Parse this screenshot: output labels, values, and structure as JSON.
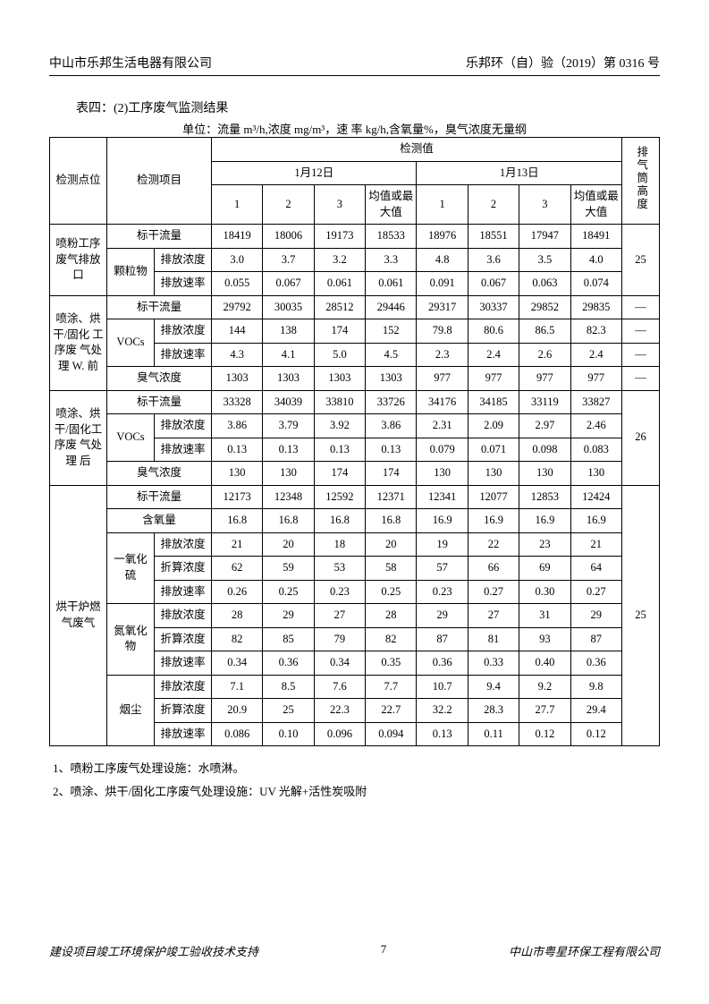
{
  "header": {
    "left": "中山市乐邦生活电器有限公司",
    "right": "乐邦环（自）验（2019）第 0316 号"
  },
  "caption": "表四：(2)工序废气监测结果",
  "unit_line": "单位：流量 m³/h,浓度 mg/m³，速 率  kg/h,含氧量%，臭气浓度无量纲",
  "thead": {
    "point": "检测点位",
    "item": "检测项目",
    "values": "检测值",
    "date1": "1月12日",
    "date2": "1月13日",
    "c1": "1",
    "c2": "2",
    "c3": "3",
    "avg": "均值或最大值",
    "height": "排气筒高度"
  },
  "sections": [
    {
      "point": "喷粉工序废气排放口",
      "height": "25",
      "groups": [
        {
          "param": "标干流量",
          "sub": null,
          "r": [
            "18419",
            "18006",
            "19173",
            "18533",
            "18976",
            "18551",
            "17947",
            "18491"
          ],
          "param_rowspan": 3,
          "param_label": "颗粒物"
        },
        {
          "param": null,
          "sub": "排放浓度",
          "r": [
            "3.0",
            "3.7",
            "3.2",
            "3.3",
            "4.8",
            "3.6",
            "3.5",
            "4.0"
          ]
        },
        {
          "param": null,
          "sub": "排放速率",
          "r": [
            "0.055",
            "0.067",
            "0.061",
            "0.061",
            "0.091",
            "0.067",
            "0.063",
            "0.074"
          ]
        }
      ]
    },
    {
      "point": "喷涂、烘干/固化 工序废 气处理 W. 前",
      "height": "—",
      "height_rows": [
        "—",
        "—",
        "—",
        "—"
      ],
      "groups": [
        {
          "param": "标干流量",
          "sub": null,
          "r": [
            "29792",
            "30035",
            "28512",
            "29446",
            "29317",
            "30337",
            "29852",
            "29835"
          ]
        },
        {
          "param": "VOCs",
          "sub": "排放浓度",
          "r": [
            "144",
            "138",
            "174",
            "152",
            "79.8",
            "80.6",
            "86.5",
            "82.3"
          ],
          "param_rowspan": 2
        },
        {
          "param": null,
          "sub": "排放速率",
          "r": [
            "4.3",
            "4.1",
            "5.0",
            "4.5",
            "2.3",
            "2.4",
            "2.6",
            "2.4"
          ]
        },
        {
          "param": "臭气浓度",
          "sub": null,
          "r": [
            "1303",
            "1303",
            "1303",
            "1303",
            "977",
            "977",
            "977",
            "977"
          ]
        }
      ]
    },
    {
      "point": "喷涂、烘干/固化工序废 气处理 后",
      "height": "26",
      "groups": [
        {
          "param": "标干流量",
          "sub": null,
          "r": [
            "33328",
            "34039",
            "33810",
            "33726",
            "34176",
            "34185",
            "33119",
            "33827"
          ]
        },
        {
          "param": "VOCs",
          "sub": "排放浓度",
          "r": [
            "3.86",
            "3.79",
            "3.92",
            "3.86",
            "2.31",
            "2.09",
            "2.97",
            "2.46"
          ],
          "param_rowspan": 2
        },
        {
          "param": null,
          "sub": "排放速率",
          "r": [
            "0.13",
            "0.13",
            "0.13",
            "0.13",
            "0.079",
            "0.071",
            "0.098",
            "0.083"
          ]
        },
        {
          "param": "臭气浓度",
          "sub": null,
          "r": [
            "130",
            "130",
            "174",
            "174",
            "130",
            "130",
            "130",
            "130"
          ]
        }
      ]
    },
    {
      "point": "烘干炉燃气废气",
      "height": "25",
      "groups": [
        {
          "param": "标干流量",
          "sub": null,
          "r": [
            "12173",
            "12348",
            "12592",
            "12371",
            "12341",
            "12077",
            "12853",
            "12424"
          ]
        },
        {
          "param": "含氧量",
          "sub": null,
          "r": [
            "16.8",
            "16.8",
            "16.8",
            "16.8",
            "16.9",
            "16.9",
            "16.9",
            "16.9"
          ]
        },
        {
          "param": "一氧化硫",
          "sub": "排放浓度",
          "r": [
            "21",
            "20",
            "18",
            "20",
            "19",
            "22",
            "23",
            "21"
          ],
          "param_rowspan": 3
        },
        {
          "param": null,
          "sub": "折算浓度",
          "r": [
            "62",
            "59",
            "53",
            "58",
            "57",
            "66",
            "69",
            "64"
          ]
        },
        {
          "param": null,
          "sub": "排放速率",
          "r": [
            "0.26",
            "0.25",
            "0.23",
            "0.25",
            "0.23",
            "0.27",
            "0.30",
            "0.27"
          ]
        },
        {
          "param": "氮氧化物",
          "sub": "排放浓度",
          "r": [
            "28",
            "29",
            "27",
            "28",
            "29",
            "27",
            "31",
            "29"
          ],
          "param_rowspan": 3
        },
        {
          "param": null,
          "sub": "折算浓度",
          "r": [
            "82",
            "85",
            "79",
            "82",
            "87",
            "81",
            "93",
            "87"
          ]
        },
        {
          "param": null,
          "sub": "排放速率",
          "r": [
            "0.34",
            "0.36",
            "0.34",
            "0.35",
            "0.36",
            "0.33",
            "0.40",
            "0.36"
          ]
        },
        {
          "param": "烟尘",
          "sub": "排放浓度",
          "r": [
            "7.1",
            "8.5",
            "7.6",
            "7.7",
            "10.7",
            "9.4",
            "9.2",
            "9.8"
          ],
          "param_rowspan": 3
        },
        {
          "param": null,
          "sub": "折算浓度",
          "r": [
            "20.9",
            "25",
            "22.3",
            "22.7",
            "32.2",
            "28.3",
            "27.7",
            "29.4"
          ]
        },
        {
          "param": null,
          "sub": "排放速率",
          "r": [
            "0.086",
            "0.10",
            "0.096",
            "0.094",
            "0.13",
            "0.11",
            "0.12",
            "0.12"
          ]
        }
      ]
    }
  ],
  "notes": [
    "1、喷粉工序废气处理设施：水喷淋。",
    "2、喷涂、烘干/固化工序废气处理设施：UV 光解+活性炭吸附"
  ],
  "footer": {
    "left": "建设项目竣工环境保护竣工验收技术支持",
    "page": "7",
    "right": "中山市粤星环保工程有限公司"
  }
}
